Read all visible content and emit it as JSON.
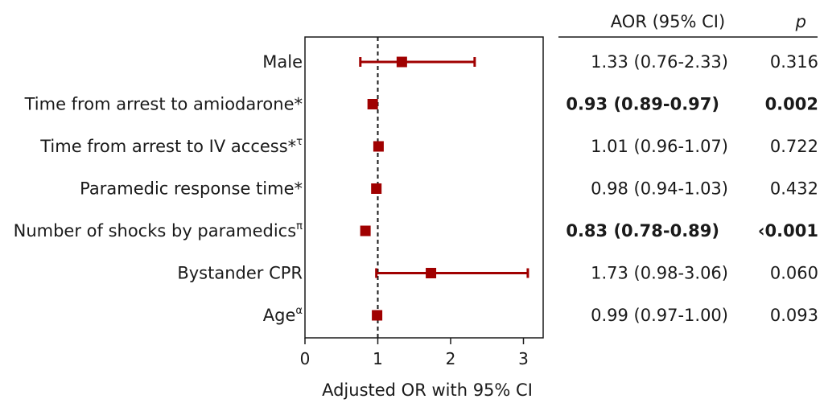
{
  "chart_data": {
    "type": "forest",
    "xlabel": "Adjusted OR with 95% CI",
    "xlim": [
      0,
      3.3
    ],
    "xticks": [
      "0",
      "1",
      "2",
      "3"
    ],
    "reference_line": 1,
    "headers": {
      "aor": "AOR (95%  CI)",
      "p": "p"
    },
    "rows": [
      {
        "label": "Male",
        "sup": "",
        "or": 1.33,
        "lo": 0.76,
        "hi": 2.33,
        "aor_text": "1.33 (0.76-2.33)",
        "p_text": "0.316",
        "bold": false
      },
      {
        "label": "Time from arrest to amiodarone*",
        "sup": "",
        "or": 0.93,
        "lo": 0.89,
        "hi": 0.97,
        "aor_text": "0.93 (0.89-0.97)",
        "p_text": "0.002",
        "bold": true
      },
      {
        "label": "Time from arrest to IV access*",
        "sup": "τ",
        "or": 1.01,
        "lo": 0.96,
        "hi": 1.07,
        "aor_text": "1.01 (0.96-1.07)",
        "p_text": "0.722",
        "bold": false
      },
      {
        "label": "Paramedic response time*",
        "sup": "",
        "or": 0.98,
        "lo": 0.94,
        "hi": 1.03,
        "aor_text": "0.98 (0.94-1.03)",
        "p_text": "0.432",
        "bold": false
      },
      {
        "label": "Number of shocks by paramedics",
        "sup": "π",
        "or": 0.83,
        "lo": 0.78,
        "hi": 0.89,
        "aor_text": "0.83 (0.78-0.89)",
        "p_text": "‹0.001",
        "bold": true
      },
      {
        "label": "Bystander CPR",
        "sup": "",
        "or": 1.73,
        "lo": 0.98,
        "hi": 3.06,
        "aor_text": "1.73 (0.98-3.06)",
        "p_text": "0.060",
        "bold": false
      },
      {
        "label": "Age",
        "sup": "α",
        "or": 0.99,
        "lo": 0.97,
        "hi": 1.0,
        "aor_text": "0.99 (0.97-1.00)",
        "p_text": "0.093",
        "bold": false
      }
    ],
    "colors": {
      "marker": "#a00000",
      "line": "#a00000",
      "axis": "#1a1a1a"
    }
  }
}
